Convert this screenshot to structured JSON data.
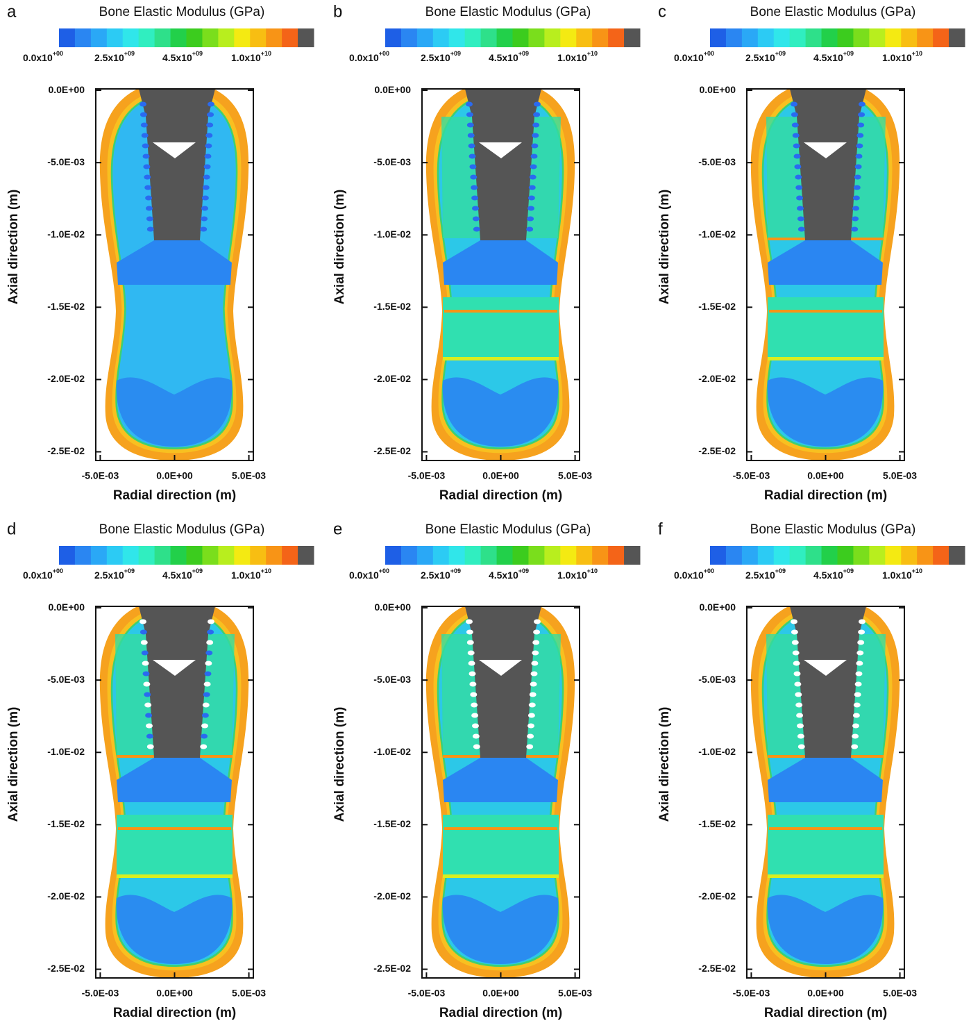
{
  "chart_data": [
    {
      "type": "contour",
      "panel": "a",
      "title": "Bone Elastic Modulus (GPa)",
      "xlabel": "Radial direction (m)",
      "ylabel": "Axial direction (m)",
      "xlim": [
        -0.0053,
        0.0053
      ],
      "ylim": [
        -0.0256,
        0.0001
      ],
      "xticks": [
        {
          "value": -0.005,
          "label": "-5.0E-03"
        },
        {
          "value": 0,
          "label": "0.0E+00"
        },
        {
          "value": 0.005,
          "label": "5.0E-03"
        }
      ],
      "yticks": [
        {
          "value": 0,
          "label": "0.0E+00"
        },
        {
          "value": -0.005,
          "label": "-5.0E-03"
        },
        {
          "value": -0.01,
          "label": "-1.0E-02"
        },
        {
          "value": -0.015,
          "label": "-1.5E-02"
        },
        {
          "value": -0.02,
          "label": "-2.0E-02"
        },
        {
          "value": -0.025,
          "label": "-2.5E-02"
        }
      ],
      "colorbar": {
        "colors": [
          "#1e5fe6",
          "#2a86f2",
          "#2aa8f6",
          "#2ccbf4",
          "#30e6ea",
          "#30eec0",
          "#2ee08a",
          "#22d04a",
          "#3ccc1e",
          "#7ade1c",
          "#b8ee1e",
          "#f4ea12",
          "#f8be12",
          "#f89416",
          "#f46418",
          "#555555"
        ],
        "ticks": [
          {
            "value": 0,
            "label": "0.0x10",
            "exponent": "+00"
          },
          {
            "value": 2500000000,
            "label": "2.5x10",
            "exponent": "+09"
          },
          {
            "value": 4500000000,
            "label": "4.5x10",
            "exponent": "+09"
          },
          {
            "value": 10000000000,
            "label": "1.0x10",
            "exponent": "+10"
          }
        ]
      }
    },
    {
      "type": "contour",
      "panel": "b",
      "title": "Bone Elastic Modulus (GPa)",
      "xlabel": "Radial direction (m)",
      "ylabel": "Axial direction (m)",
      "xlim": [
        -0.0053,
        0.0053
      ],
      "ylim": [
        -0.0256,
        0.0001
      ],
      "xticks": [
        {
          "value": -0.005,
          "label": "-5.0E-03"
        },
        {
          "value": 0,
          "label": "0.0E+00"
        },
        {
          "value": 0.005,
          "label": "5.0E-03"
        }
      ],
      "yticks": [
        {
          "value": 0,
          "label": "0.0E+00"
        },
        {
          "value": -0.005,
          "label": "-5.0E-03"
        },
        {
          "value": -0.01,
          "label": "-1.0E-02"
        },
        {
          "value": -0.015,
          "label": "-1.5E-02"
        },
        {
          "value": -0.02,
          "label": "-2.0E-02"
        },
        {
          "value": -0.025,
          "label": "-2.5E-02"
        }
      ],
      "colorbar": {
        "colors": [
          "#1e5fe6",
          "#2a86f2",
          "#2aa8f6",
          "#2ccbf4",
          "#30e6ea",
          "#30eec0",
          "#2ee08a",
          "#22d04a",
          "#3ccc1e",
          "#7ade1c",
          "#b8ee1e",
          "#f4ea12",
          "#f8be12",
          "#f89416",
          "#f46418",
          "#555555"
        ],
        "ticks": [
          {
            "value": 0,
            "label": "0.0x10",
            "exponent": "+00"
          },
          {
            "value": 2500000000,
            "label": "2.5x10",
            "exponent": "+09"
          },
          {
            "value": 4500000000,
            "label": "4.5x10",
            "exponent": "+09"
          },
          {
            "value": 10000000000,
            "label": "1.0x10",
            "exponent": "+10"
          }
        ]
      }
    },
    {
      "type": "contour",
      "panel": "c",
      "title": "Bone Elastic Modulus (GPa)",
      "xlabel": "Radial direction (m)",
      "ylabel": "Axial direction (m)",
      "xlim": [
        -0.0053,
        0.0053
      ],
      "ylim": [
        -0.0256,
        0.0001
      ],
      "xticks": [
        {
          "value": -0.005,
          "label": "-5.0E-03"
        },
        {
          "value": 0,
          "label": "0.0E+00"
        },
        {
          "value": 0.005,
          "label": "5.0E-03"
        }
      ],
      "yticks": [
        {
          "value": 0,
          "label": "0.0E+00"
        },
        {
          "value": -0.005,
          "label": "-5.0E-03"
        },
        {
          "value": -0.01,
          "label": "-1.0E-02"
        },
        {
          "value": -0.015,
          "label": "-1.5E-02"
        },
        {
          "value": -0.02,
          "label": "-2.0E-02"
        },
        {
          "value": -0.025,
          "label": "-2.5E-02"
        }
      ],
      "colorbar": {
        "colors": [
          "#1e5fe6",
          "#2a86f2",
          "#2aa8f6",
          "#2ccbf4",
          "#30e6ea",
          "#30eec0",
          "#2ee08a",
          "#22d04a",
          "#3ccc1e",
          "#7ade1c",
          "#b8ee1e",
          "#f4ea12",
          "#f8be12",
          "#f89416",
          "#f46418",
          "#555555"
        ],
        "ticks": [
          {
            "value": 0,
            "label": "0.0x10",
            "exponent": "+00"
          },
          {
            "value": 2500000000,
            "label": "2.5x10",
            "exponent": "+09"
          },
          {
            "value": 4500000000,
            "label": "4.5x10",
            "exponent": "+09"
          },
          {
            "value": 10000000000,
            "label": "1.0x10",
            "exponent": "+10"
          }
        ]
      }
    },
    {
      "type": "contour",
      "panel": "d",
      "title": "Bone Elastic Modulus (GPa)",
      "xlabel": "Radial direction (m)",
      "ylabel": "Axial direction (m)",
      "xlim": [
        -0.0053,
        0.0053
      ],
      "ylim": [
        -0.0256,
        0.0001
      ],
      "xticks": [
        {
          "value": -0.005,
          "label": "-5.0E-03"
        },
        {
          "value": 0,
          "label": "0.0E+00"
        },
        {
          "value": 0.005,
          "label": "5.0E-03"
        }
      ],
      "yticks": [
        {
          "value": 0,
          "label": "0.0E+00"
        },
        {
          "value": -0.005,
          "label": "-5.0E-03"
        },
        {
          "value": -0.01,
          "label": "-1.0E-02"
        },
        {
          "value": -0.015,
          "label": "-1.5E-02"
        },
        {
          "value": -0.02,
          "label": "-2.0E-02"
        },
        {
          "value": -0.025,
          "label": "-2.5E-02"
        }
      ],
      "colorbar": {
        "colors": [
          "#1e5fe6",
          "#2a86f2",
          "#2aa8f6",
          "#2ccbf4",
          "#30e6ea",
          "#30eec0",
          "#2ee08a",
          "#22d04a",
          "#3ccc1e",
          "#7ade1c",
          "#b8ee1e",
          "#f4ea12",
          "#f8be12",
          "#f89416",
          "#f46418",
          "#555555"
        ],
        "ticks": [
          {
            "value": 0,
            "label": "0.0x10",
            "exponent": "+00"
          },
          {
            "value": 2500000000,
            "label": "2.5x10",
            "exponent": "+09"
          },
          {
            "value": 4500000000,
            "label": "4.5x10",
            "exponent": "+09"
          },
          {
            "value": 10000000000,
            "label": "1.0x10",
            "exponent": "+10"
          }
        ]
      }
    },
    {
      "type": "contour",
      "panel": "e",
      "title": "Bone Elastic Modulus (GPa)",
      "xlabel": "Radial direction (m)",
      "ylabel": "Axial direction (m)",
      "xlim": [
        -0.0053,
        0.0053
      ],
      "ylim": [
        -0.0256,
        0.0001
      ],
      "xticks": [
        {
          "value": -0.005,
          "label": "-5.0E-03"
        },
        {
          "value": 0,
          "label": "0.0E+00"
        },
        {
          "value": 0.005,
          "label": "5.0E-03"
        }
      ],
      "yticks": [
        {
          "value": 0,
          "label": "0.0E+00"
        },
        {
          "value": -0.005,
          "label": "-5.0E-03"
        },
        {
          "value": -0.01,
          "label": "-1.0E-02"
        },
        {
          "value": -0.015,
          "label": "-1.5E-02"
        },
        {
          "value": -0.02,
          "label": "-2.0E-02"
        },
        {
          "value": -0.025,
          "label": "-2.5E-02"
        }
      ],
      "colorbar": {
        "colors": [
          "#1e5fe6",
          "#2a86f2",
          "#2aa8f6",
          "#2ccbf4",
          "#30e6ea",
          "#30eec0",
          "#2ee08a",
          "#22d04a",
          "#3ccc1e",
          "#7ade1c",
          "#b8ee1e",
          "#f4ea12",
          "#f8be12",
          "#f89416",
          "#f46418",
          "#555555"
        ],
        "ticks": [
          {
            "value": 0,
            "label": "0.0x10",
            "exponent": "+00"
          },
          {
            "value": 2500000000,
            "label": "2.5x10",
            "exponent": "+09"
          },
          {
            "value": 4500000000,
            "label": "4.5x10",
            "exponent": "+09"
          },
          {
            "value": 10000000000,
            "label": "1.0x10",
            "exponent": "+10"
          }
        ]
      }
    },
    {
      "type": "contour",
      "panel": "f",
      "title": "Bone Elastic Modulus (GPa)",
      "xlabel": "Radial direction (m)",
      "ylabel": "Axial direction (m)",
      "xlim": [
        -0.0053,
        0.0053
      ],
      "ylim": [
        -0.0256,
        0.0001
      ],
      "xticks": [
        {
          "value": -0.005,
          "label": "-5.0E-03"
        },
        {
          "value": 0,
          "label": "0.0E+00"
        },
        {
          "value": 0.005,
          "label": "5.0E-03"
        }
      ],
      "yticks": [
        {
          "value": 0,
          "label": "0.0E+00"
        },
        {
          "value": -0.005,
          "label": "-5.0E-03"
        },
        {
          "value": -0.01,
          "label": "-1.0E-02"
        },
        {
          "value": -0.015,
          "label": "-1.5E-02"
        },
        {
          "value": -0.02,
          "label": "-2.0E-02"
        },
        {
          "value": -0.025,
          "label": "-2.5E-02"
        }
      ],
      "colorbar": {
        "colors": [
          "#1e5fe6",
          "#2a86f2",
          "#2aa8f6",
          "#2ccbf4",
          "#30e6ea",
          "#30eec0",
          "#2ee08a",
          "#22d04a",
          "#3ccc1e",
          "#7ade1c",
          "#b8ee1e",
          "#f4ea12",
          "#f8be12",
          "#f89416",
          "#f46418",
          "#555555"
        ],
        "ticks": [
          {
            "value": 0,
            "label": "0.0x10",
            "exponent": "+00"
          },
          {
            "value": 2500000000,
            "label": "2.5x10",
            "exponent": "+09"
          },
          {
            "value": 4500000000,
            "label": "4.5x10",
            "exponent": "+09"
          },
          {
            "value": 10000000000,
            "label": "1.0x10",
            "exponent": "+10"
          }
        ]
      }
    }
  ]
}
